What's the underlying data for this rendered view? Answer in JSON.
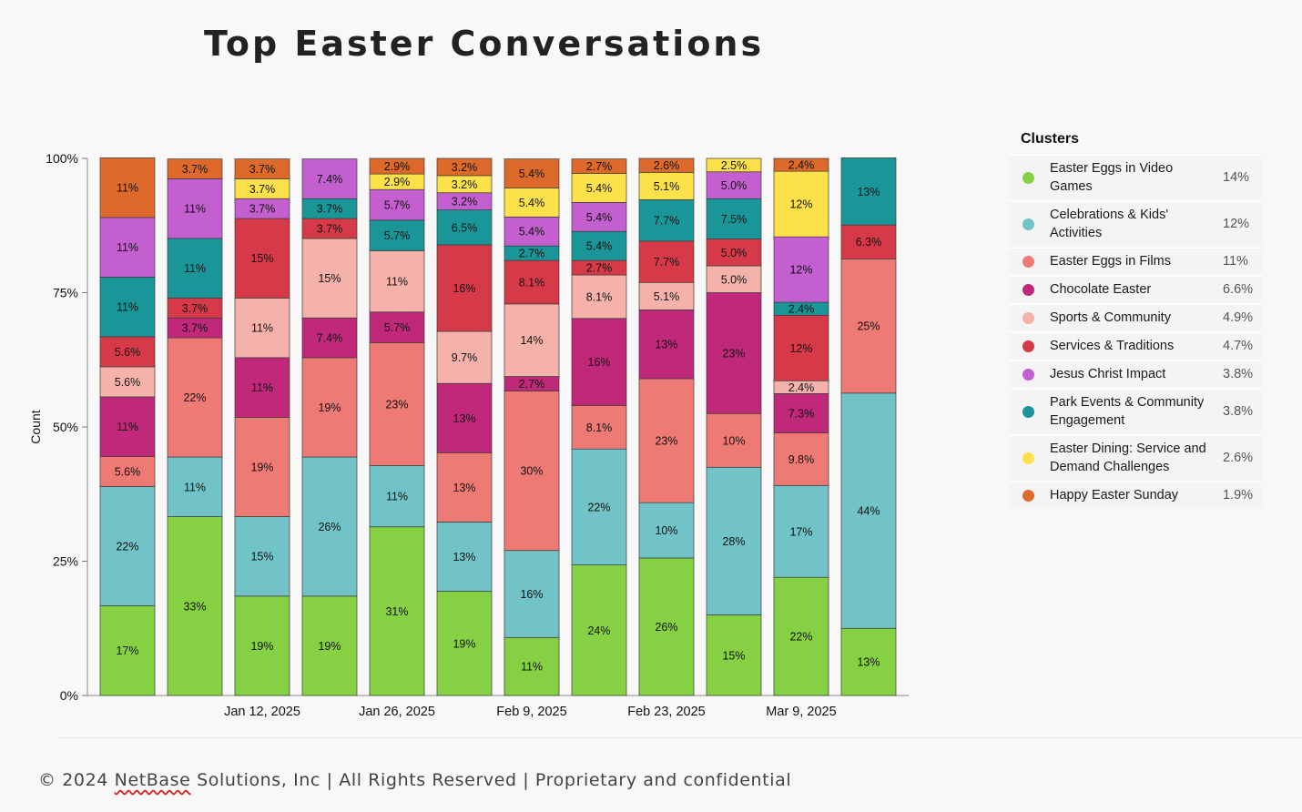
{
  "page": {
    "title": "Top Easter Conversations",
    "footer_prefix": "© 2024 ",
    "footer_brand": "NetBase",
    "footer_suffix": " Solutions, Inc | All Rights Reserved | Proprietary and confidential"
  },
  "legend": {
    "title": "Clusters",
    "items": [
      {
        "label": "Easter Eggs in Video Games",
        "value": "14%",
        "color": "#86d044"
      },
      {
        "label": "Celebrations & Kids' Activities",
        "value": "12%",
        "color": "#72c3c7"
      },
      {
        "label": "Easter Eggs in Films",
        "value": "11%",
        "color": "#ee7a76"
      },
      {
        "label": "Chocolate Easter",
        "value": "6.6%",
        "color": "#c0297a"
      },
      {
        "label": "Sports & Community",
        "value": "4.9%",
        "color": "#f5b2ab"
      },
      {
        "label": "Services & Traditions",
        "value": "4.7%",
        "color": "#d63a49"
      },
      {
        "label": "Jesus Christ Impact",
        "value": "3.8%",
        "color": "#c45fd0"
      },
      {
        "label": "Park Events & Community Engagement",
        "value": "3.8%",
        "color": "#1a9698"
      },
      {
        "label": "Easter Dining: Service and Demand Challenges",
        "value": "2.6%",
        "color": "#fde14a"
      },
      {
        "label": "Happy Easter Sunday",
        "value": "1.9%",
        "color": "#dd6a2a"
      }
    ]
  },
  "chart_data": {
    "type": "bar",
    "stacked": true,
    "normalized": true,
    "ylabel": "Count",
    "ylim": [
      0,
      100
    ],
    "yticks": [
      "0%",
      "25%",
      "50%",
      "75%",
      "100%"
    ],
    "x_tick_labels": [
      "",
      "",
      "Jan 12, 2025",
      "",
      "Jan 26, 2025",
      "",
      "Feb 9, 2025",
      "",
      "Feb 23, 2025",
      "",
      "Mar 9, 2025",
      ""
    ],
    "series": [
      {
        "name": "Easter Eggs in Video Games",
        "color": "#86d044",
        "values": [
          16.7,
          33.3,
          18.5,
          18.5,
          31.4,
          19.4,
          10.8,
          24.3,
          25.6,
          15.0,
          22.0,
          12.5
        ],
        "labels": [
          "17%",
          "33%",
          "19%",
          "19%",
          "31%",
          "19%",
          "11%",
          "24%",
          "26%",
          "15%",
          "22%",
          "13%"
        ]
      },
      {
        "name": "Celebrations & Kids' Activities",
        "color": "#72c3c7",
        "values": [
          22.2,
          11.1,
          14.8,
          25.9,
          11.4,
          12.9,
          16.2,
          21.6,
          10.3,
          27.5,
          17.1,
          43.8
        ],
        "labels": [
          "22%",
          "11%",
          "15%",
          "26%",
          "11%",
          "13%",
          "16%",
          "22%",
          "10%",
          "28%",
          "17%",
          "44%"
        ]
      },
      {
        "name": "Easter Eggs in Films",
        "color": "#ee7a76",
        "values": [
          5.6,
          22.2,
          18.5,
          18.5,
          22.9,
          12.9,
          29.7,
          8.1,
          23.1,
          10.0,
          9.8,
          25.0
        ],
        "labels": [
          "5.6%",
          "22%",
          "19%",
          "19%",
          "23%",
          "13%",
          "30%",
          "8.1%",
          "23%",
          "10%",
          "9.8%",
          "25%"
        ]
      },
      {
        "name": "Chocolate Easter",
        "color": "#c0297a",
        "values": [
          11.1,
          3.7,
          11.1,
          7.4,
          5.7,
          12.9,
          2.7,
          16.2,
          12.8,
          22.5,
          7.3,
          0
        ],
        "labels": [
          "11%",
          "3.7%",
          "11%",
          "7.4%",
          "5.7%",
          "13%",
          "2.7%",
          "16%",
          "13%",
          "23%",
          "7.3%",
          ""
        ]
      },
      {
        "name": "Sports & Community",
        "color": "#f5b2ab",
        "values": [
          5.6,
          0,
          11.1,
          14.8,
          11.4,
          9.7,
          13.5,
          8.1,
          5.1,
          5.0,
          2.4,
          0
        ],
        "labels": [
          "5.6%",
          "",
          "11%",
          "15%",
          "11%",
          "9.7%",
          "14%",
          "8.1%",
          "5.1%",
          "5.0%",
          "2.4%",
          ""
        ]
      },
      {
        "name": "Services & Traditions",
        "color": "#d63a49",
        "values": [
          5.6,
          3.7,
          14.8,
          3.7,
          0,
          16.1,
          8.1,
          2.7,
          7.7,
          5.0,
          12.2,
          6.3
        ],
        "labels": [
          "5.6%",
          "3.7%",
          "15%",
          "3.7%",
          "",
          "16%",
          "8.1%",
          "2.7%",
          "7.7%",
          "5.0%",
          "12%",
          "6.3%"
        ]
      },
      {
        "name": "Park Events & Community Engagement",
        "color": "#1a9698",
        "values": [
          11.1,
          11.1,
          0,
          3.7,
          5.7,
          6.5,
          2.7,
          5.4,
          7.7,
          7.5,
          2.4,
          12.5
        ],
        "labels": [
          "11%",
          "11%",
          "",
          "3.7%",
          "5.7%",
          "6.5%",
          "2.7%",
          "5.4%",
          "7.7%",
          "7.5%",
          "2.4%",
          "13%"
        ]
      },
      {
        "name": "Jesus Christ Impact",
        "color": "#c45fd0",
        "values": [
          11.1,
          11.1,
          3.7,
          7.4,
          5.7,
          3.2,
          5.4,
          5.4,
          0,
          5.0,
          12.2,
          0
        ],
        "labels": [
          "11%",
          "11%",
          "3.7%",
          "7.4%",
          "5.7%",
          "3.2%",
          "5.4%",
          "5.4%",
          "",
          "5.0%",
          "12%",
          ""
        ]
      },
      {
        "name": "Easter Dining: Service and Demand Challenges",
        "color": "#fde14a",
        "values": [
          0,
          0,
          3.7,
          0,
          2.9,
          3.2,
          5.4,
          5.4,
          5.1,
          2.5,
          12.2,
          0
        ],
        "labels": [
          "",
          "",
          "3.7%",
          "",
          "2.9%",
          "3.2%",
          "5.4%",
          "5.4%",
          "5.1%",
          "2.5%",
          "12%",
          ""
        ]
      },
      {
        "name": "Happy Easter Sunday",
        "color": "#dd6a2a",
        "values": [
          11.1,
          3.7,
          3.7,
          0,
          2.9,
          3.2,
          5.4,
          2.7,
          2.6,
          0,
          2.4,
          0
        ],
        "labels": [
          "11%",
          "3.7%",
          "3.7%",
          "",
          "2.9%",
          "3.2%",
          "5.4%",
          "2.7%",
          "2.6%",
          "",
          "2.4%",
          ""
        ]
      }
    ]
  }
}
